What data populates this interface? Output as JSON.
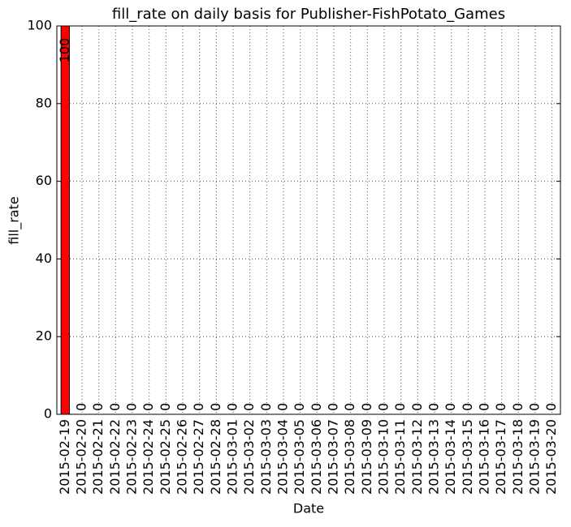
{
  "chart_data": {
    "type": "bar",
    "title": "fill_rate on daily basis for Publisher-FishPotato_Games",
    "x_label": "Date",
    "y_label": "fill_rate",
    "categories": [
      "2015-02-19",
      "2015-02-20",
      "2015-02-21",
      "2015-02-22",
      "2015-02-23",
      "2015-02-24",
      "2015-02-25",
      "2015-02-26",
      "2015-02-27",
      "2015-02-28",
      "2015-03-01",
      "2015-03-02",
      "2015-03-03",
      "2015-03-04",
      "2015-03-05",
      "2015-03-06",
      "2015-03-07",
      "2015-03-08",
      "2015-03-09",
      "2015-03-10",
      "2015-03-11",
      "2015-03-12",
      "2015-03-13",
      "2015-03-14",
      "2015-03-15",
      "2015-03-16",
      "2015-03-17",
      "2015-03-18",
      "2015-03-19",
      "2015-03-20"
    ],
    "values": [
      100,
      0,
      0,
      0,
      0,
      0,
      0,
      0,
      0,
      0,
      0,
      0,
      0,
      0,
      0,
      0,
      0,
      0,
      0,
      0,
      0,
      0,
      0,
      0,
      0,
      0,
      0,
      0,
      0,
      0
    ],
    "color": "#ff0000",
    "ylim": [
      0,
      100
    ],
    "yticks": [
      0,
      20,
      40,
      60,
      80,
      100
    ],
    "grid": true
  }
}
